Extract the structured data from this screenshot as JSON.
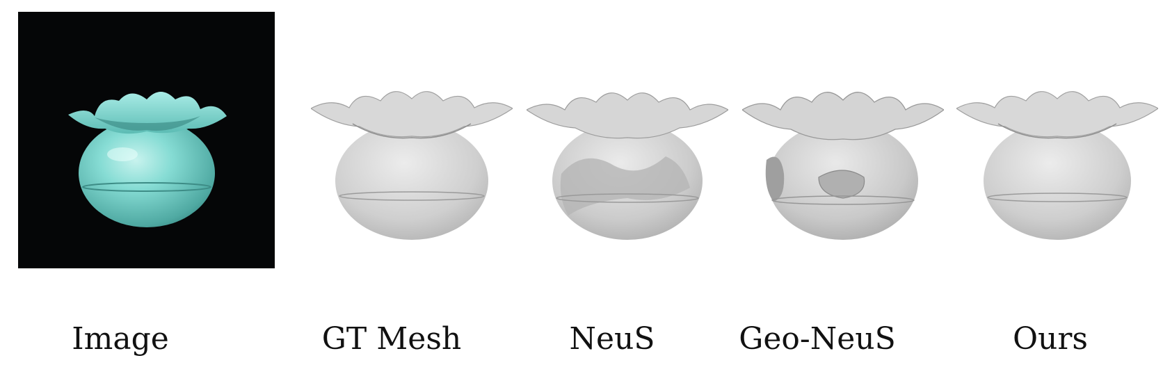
{
  "figure": {
    "panels": [
      {
        "id": "image",
        "caption": "Image"
      },
      {
        "id": "gt-mesh",
        "caption": "GT Mesh"
      },
      {
        "id": "neus",
        "caption": "NeuS"
      },
      {
        "id": "geo-neus",
        "caption": "Geo-NeuS"
      },
      {
        "id": "ours",
        "caption": "Ours"
      }
    ],
    "colors": {
      "photo_background": "#050607",
      "vase_teal": "#7fd6cf",
      "mesh_gray": "#cfcfcf"
    }
  }
}
